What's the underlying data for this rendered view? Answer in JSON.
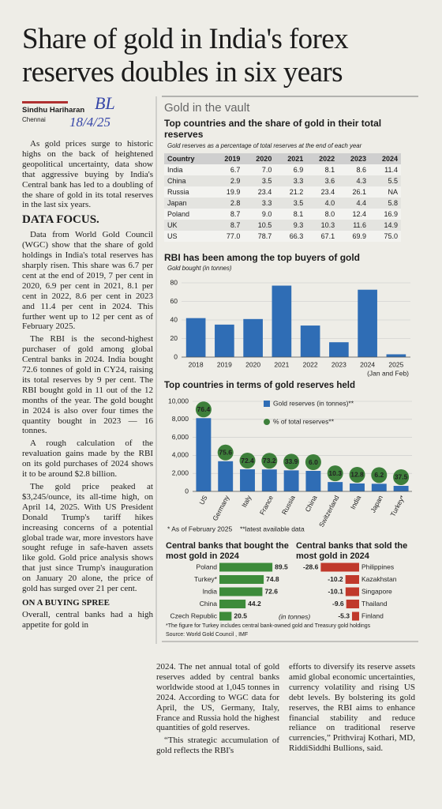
{
  "headline": [
    "Share of gold in India's forex",
    "reserves doubles in six years"
  ],
  "byline": {
    "name": "Sindhu Hariharan",
    "location": "Chennai"
  },
  "handwritten_note": [
    "BL",
    "18/4/25"
  ],
  "article": {
    "intro": "As gold prices surge to historic highs on the back of heightened geopolitical uncertainty, data show that aggressive buying by India's Central bank has led to a doubling of the share of gold in its total reserves in the last six years.",
    "section_heading": "DATA FOCUS.",
    "paragraphs": [
      "Data from World Gold Council (WGC) show that the share of gold holdings in India's total reserves has sharply risen. This share was 6.7 per cent at the end of 2019, 7 per cent in 2020, 6.9 per cent in 2021, 8.1 per cent in 2022, 8.6 per cent in 2023 and 11.4 per cent in 2024. This further went up to 12 per cent as of February 2025.",
      "The RBI is the second-highest purchaser of gold among global Central banks in 2024. India bought 72.6 tonnes of gold in CY24, raising its total reserves by 9 per cent. The RBI bought gold in 11 out of the 12 months of the year. The gold bought in 2024 is also over four times the quantity bought in 2023 — 16 tonnes.",
      "A rough calculation of the revaluation gains made by the RBI on its gold purchases of 2024 shows it to be around $2.8 billion.",
      "The gold price peaked at $3,245/ounce, its all-time high, on April 14, 2025. With US President Donald Trump's tariff hikes increasing concerns of a potential global trade war, more investors have sought refuge in safe-haven assets like gold. Gold price analysis shows that just since Trump's inauguration on January 20 alone, the price of gold has surged over 21 per cent."
    ],
    "subheading": "ON A BUYING SPREE",
    "left_tail": "Overall, central banks had a high appetite for gold in",
    "middle": [
      "2024. The net annual total of gold reserves added by central banks worldwide stood at 1,045 tonnes in 2024. According to WGC data for April, the US, Germany, Italy, France and Russia hold the highest quantities of gold reserves.",
      "“This strategic accumulation of gold reflects the RBI's"
    ],
    "right": [
      "efforts to diversify its reserve assets amid global economic uncertainties, currency volatility and rising US debt levels. By bolstering its gold reserves, the RBI aims to enhance financial stability and reduce reliance on traditional reserve currencies,” Prithviraj Kothari, MD, RiddiSiddhi Bullions, said."
    ]
  },
  "infographic": {
    "kicker": "Gold in the vault",
    "footnote": "*The figure for Turkey includes central bank-owned gold and Treasury gold holdings",
    "source": "Source: World Gold Council , IMF"
  },
  "table": {
    "title": "Top countries and the share of gold in their total reserves",
    "subtitle": "Gold reserves as a percentage of total reserves at the end of each year",
    "columns": [
      "Country",
      "2019",
      "2020",
      "2021",
      "2022",
      "2023",
      "2024"
    ],
    "rows": [
      [
        "India",
        "6.7",
        "7.0",
        "6.9",
        "8.1",
        "8.6",
        "11.4"
      ],
      [
        "China",
        "2.9",
        "3.5",
        "3.3",
        "3.6",
        "4.3",
        "5.5"
      ],
      [
        "Russia",
        "19.9",
        "23.4",
        "21.2",
        "23.4",
        "26.1",
        "NA"
      ],
      [
        "Japan",
        "2.8",
        "3.3",
        "3.5",
        "4.0",
        "4.4",
        "5.8"
      ],
      [
        "Poland",
        "8.7",
        "9.0",
        "8.1",
        "8.0",
        "12.4",
        "16.9"
      ],
      [
        "UK",
        "8.7",
        "10.5",
        "9.3",
        "10.3",
        "11.6",
        "14.9"
      ],
      [
        "US",
        "77.0",
        "78.7",
        "66.3",
        "67.1",
        "69.9",
        "75.0"
      ]
    ]
  },
  "chart_data": [
    {
      "type": "bar",
      "title": "RBI has been among the top buyers of gold",
      "y_label": "Gold bought (in tonnes)",
      "categories": [
        "2018",
        "2019",
        "2020",
        "2021",
        "2022",
        "2023",
        "2024",
        "2025"
      ],
      "x_note": "(Jan and Feb)",
      "values": [
        42,
        35,
        41,
        77,
        34,
        16,
        72.6,
        3
      ],
      "color": "#2f6db5",
      "ylim": [
        0,
        80
      ],
      "yticks": [
        0,
        20,
        40,
        60,
        80
      ],
      "grid": true
    },
    {
      "type": "bar",
      "title": "Top countries in terms of gold reserves held",
      "categories": [
        "US",
        "Germany",
        "Italy",
        "France",
        "Russia",
        "China",
        "Switzerland",
        "India",
        "Japan",
        "Turkey*"
      ],
      "series": [
        {
          "name": "Gold reserves (in tonnes)**",
          "color": "#2f6db5",
          "values": [
            8133,
            3351,
            2452,
            2437,
            2336,
            2280,
            1040,
            880,
            846,
            615
          ]
        },
        {
          "name": "% of total reserves**",
          "color": "#3d7f3a",
          "values": [
            76.4,
            75.6,
            72.4,
            73.2,
            33.9,
            6.0,
            10.3,
            12.8,
            6.2,
            37.5
          ],
          "value_labels": [
            "76.4",
            "75.6",
            "72.4",
            "73.2",
            "33.9",
            "6.0",
            "10.3",
            "12.8",
            "6.2",
            "37.5"
          ]
        }
      ],
      "ylim": [
        0,
        10000
      ],
      "yticks": [
        0,
        {
          "value": 2000,
          "label": "2,000"
        },
        {
          "value": 4000,
          "label": "4,000"
        },
        {
          "value": 6000,
          "label": "6,000"
        },
        {
          "value": 8000,
          "label": "8,000"
        },
        {
          "value": 10000,
          "label": "10,000"
        }
      ],
      "grid": true,
      "footnotes": [
        "* As of February 2025",
        "**latest available data"
      ]
    },
    {
      "type": "barh",
      "title": "Central banks that bought the most gold in 2024",
      "categories": [
        "Poland",
        "Turkey*",
        "India",
        "China",
        "Czech Republic"
      ],
      "values": [
        89.5,
        74.8,
        72.6,
        44.2,
        20.5
      ],
      "color": "#3d8b3a"
    },
    {
      "type": "barh",
      "title": "Central banks that sold the most gold in 2024",
      "categories": [
        "Philippines",
        "Kazakhstan",
        "Singapore",
        "Thailand",
        "Finland"
      ],
      "values": [
        -28.6,
        -10.2,
        -10.1,
        -9.6,
        -5.3
      ],
      "color": "#c0392b",
      "unit_label": "(in tonnes)"
    }
  ]
}
